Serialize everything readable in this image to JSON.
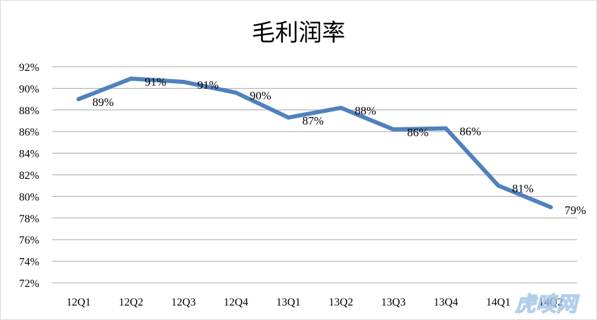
{
  "chart_data": {
    "type": "line",
    "title": "毛利润率",
    "categories": [
      "12Q1",
      "12Q2",
      "12Q3",
      "12Q4",
      "13Q1",
      "13Q2",
      "13Q3",
      "13Q4",
      "14Q1",
      "14Q2"
    ],
    "series": [
      {
        "values": [
          89.0,
          90.9,
          90.6,
          89.6,
          87.3,
          88.2,
          86.2,
          86.3,
          81.0,
          79.0
        ],
        "data_labels": [
          "89%",
          "91%",
          "91%",
          "90%",
          "87%",
          "88%",
          "86%",
          "86%",
          "81%",
          "79%"
        ],
        "color": "#4f81bd"
      }
    ],
    "ylim": [
      72,
      92
    ],
    "yticks": [
      "92%",
      "90%",
      "88%",
      "86%",
      "84%",
      "82%",
      "80%",
      "78%",
      "76%",
      "74%",
      "72%"
    ],
    "ytick_values": [
      92,
      90,
      88,
      86,
      84,
      82,
      80,
      78,
      76,
      74,
      72
    ],
    "grid": true,
    "gridline_color": "#a6a6a6",
    "legend": "none",
    "watermark": "虎嗅网"
  }
}
